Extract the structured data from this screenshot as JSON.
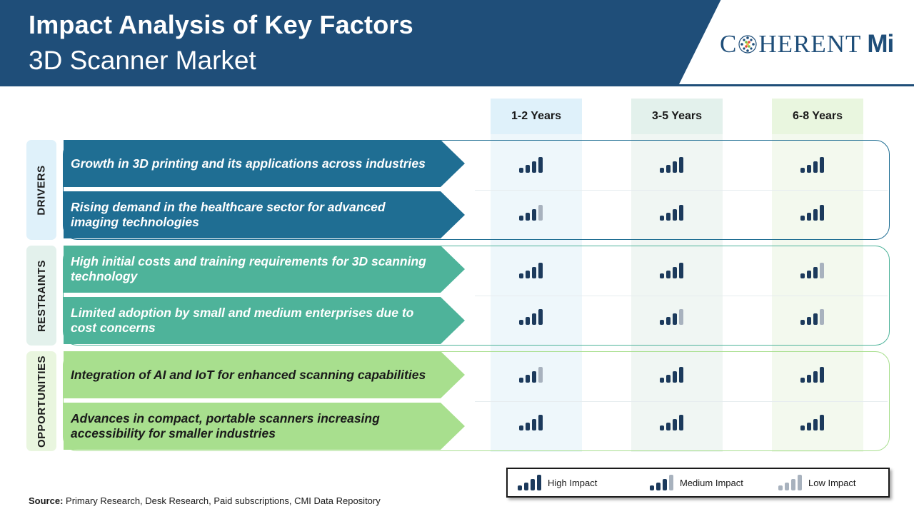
{
  "header": {
    "title": "Impact Analysis of Key Factors",
    "subtitle": "3D Scanner Market",
    "logo_text": "C  HERENT",
    "logo_suffix": "Mi",
    "logo_brand": "CoherentMI"
  },
  "columns": [
    "1-2 Years",
    "3-5 Years",
    "6-8 Years"
  ],
  "colors": {
    "header_bg": "#1f4e79",
    "drivers": "#1f6e93",
    "restraints": "#4eb39a",
    "opportunities": "#a8df8e",
    "icon_high": "#1c3a5c",
    "icon_faded": "#a8b2be"
  },
  "groups": [
    {
      "label": "DRIVERS",
      "factors": [
        {
          "text": "Growth in 3D printing and its applications across industries",
          "impact": [
            "high",
            "high",
            "high"
          ]
        },
        {
          "text": "Rising demand in the healthcare sector for advanced imaging technologies",
          "impact": [
            "medium",
            "high",
            "high"
          ]
        }
      ]
    },
    {
      "label": "RESTRAINTS",
      "factors": [
        {
          "text": "High initial costs and training requirements for 3D scanning technology",
          "impact": [
            "high",
            "high",
            "medium"
          ]
        },
        {
          "text": "Limited adoption by small and medium enterprises due to cost concerns",
          "impact": [
            "high",
            "medium",
            "medium"
          ]
        }
      ]
    },
    {
      "label": "OPPORTUNITIES",
      "factors": [
        {
          "text": "Integration of AI and IoT for enhanced scanning capabilities",
          "impact": [
            "medium",
            "high",
            "high"
          ]
        },
        {
          "text": "Advances in compact, portable scanners increasing accessibility for smaller industries",
          "impact": [
            "high",
            "high",
            "high"
          ]
        }
      ]
    }
  ],
  "legend": {
    "high": "High Impact",
    "medium": "Medium Impact",
    "low": "Low Impact"
  },
  "source": {
    "label": "Source:",
    "text": "Primary Research, Desk Research, Paid subscriptions, CMI Data Repository"
  }
}
